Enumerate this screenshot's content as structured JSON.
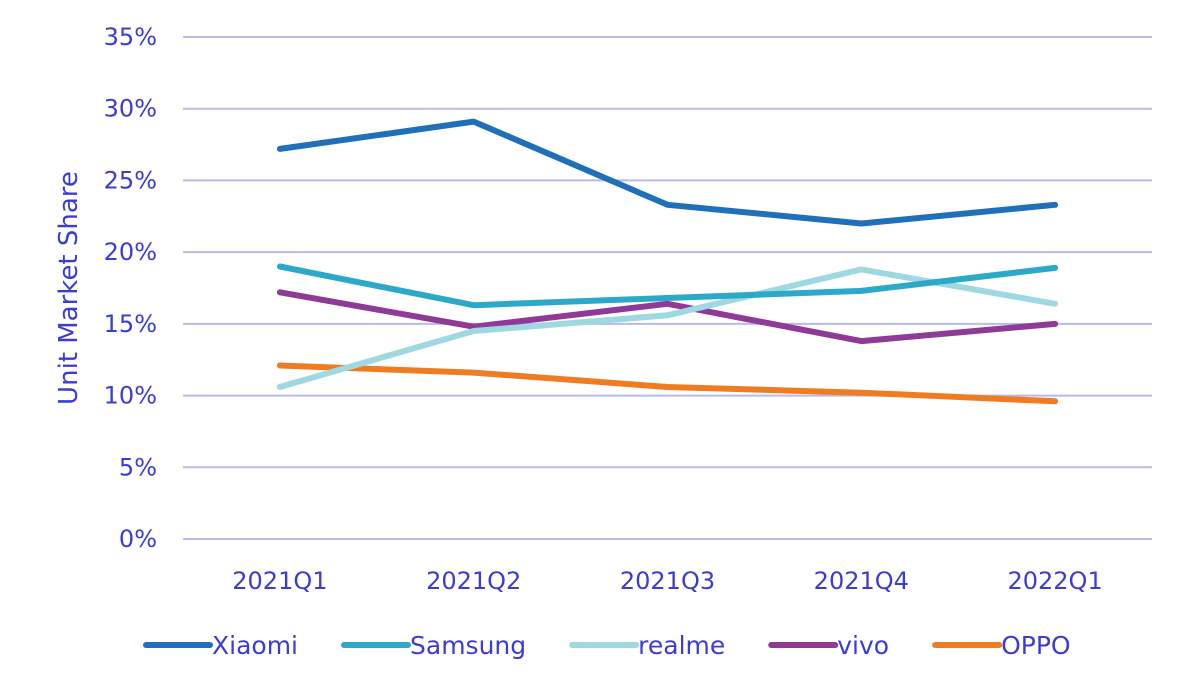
{
  "chart_data": {
    "type": "line",
    "ylabel": "Unit Market Share",
    "xlabel": "",
    "categories": [
      "2021Q1",
      "2021Q2",
      "2021Q3",
      "2021Q4",
      "2022Q1"
    ],
    "ylim": [
      0,
      35
    ],
    "y_ticks": [
      "0%",
      "5%",
      "10%",
      "15%",
      "20%",
      "25%",
      "30%",
      "35%"
    ],
    "y_tick_values": [
      0,
      5,
      10,
      15,
      20,
      25,
      30,
      35
    ],
    "grid": true,
    "legend_position": "bottom",
    "series": [
      {
        "name": "Xiaomi",
        "color": "#1f6fb9",
        "values": [
          27.2,
          29.1,
          23.3,
          22.0,
          23.3
        ]
      },
      {
        "name": "Samsung",
        "color": "#2ca9c9",
        "values": [
          19.0,
          16.3,
          16.8,
          17.3,
          18.9
        ]
      },
      {
        "name": "realme",
        "color": "#9ed8e0",
        "values": [
          10.6,
          14.5,
          15.6,
          18.8,
          16.4
        ]
      },
      {
        "name": "vivo",
        "color": "#8e3a96",
        "values": [
          17.2,
          14.8,
          16.4,
          13.8,
          15.0
        ]
      },
      {
        "name": "OPPO",
        "color": "#f07c22",
        "values": [
          12.1,
          11.6,
          10.6,
          10.2,
          9.6
        ]
      }
    ]
  }
}
